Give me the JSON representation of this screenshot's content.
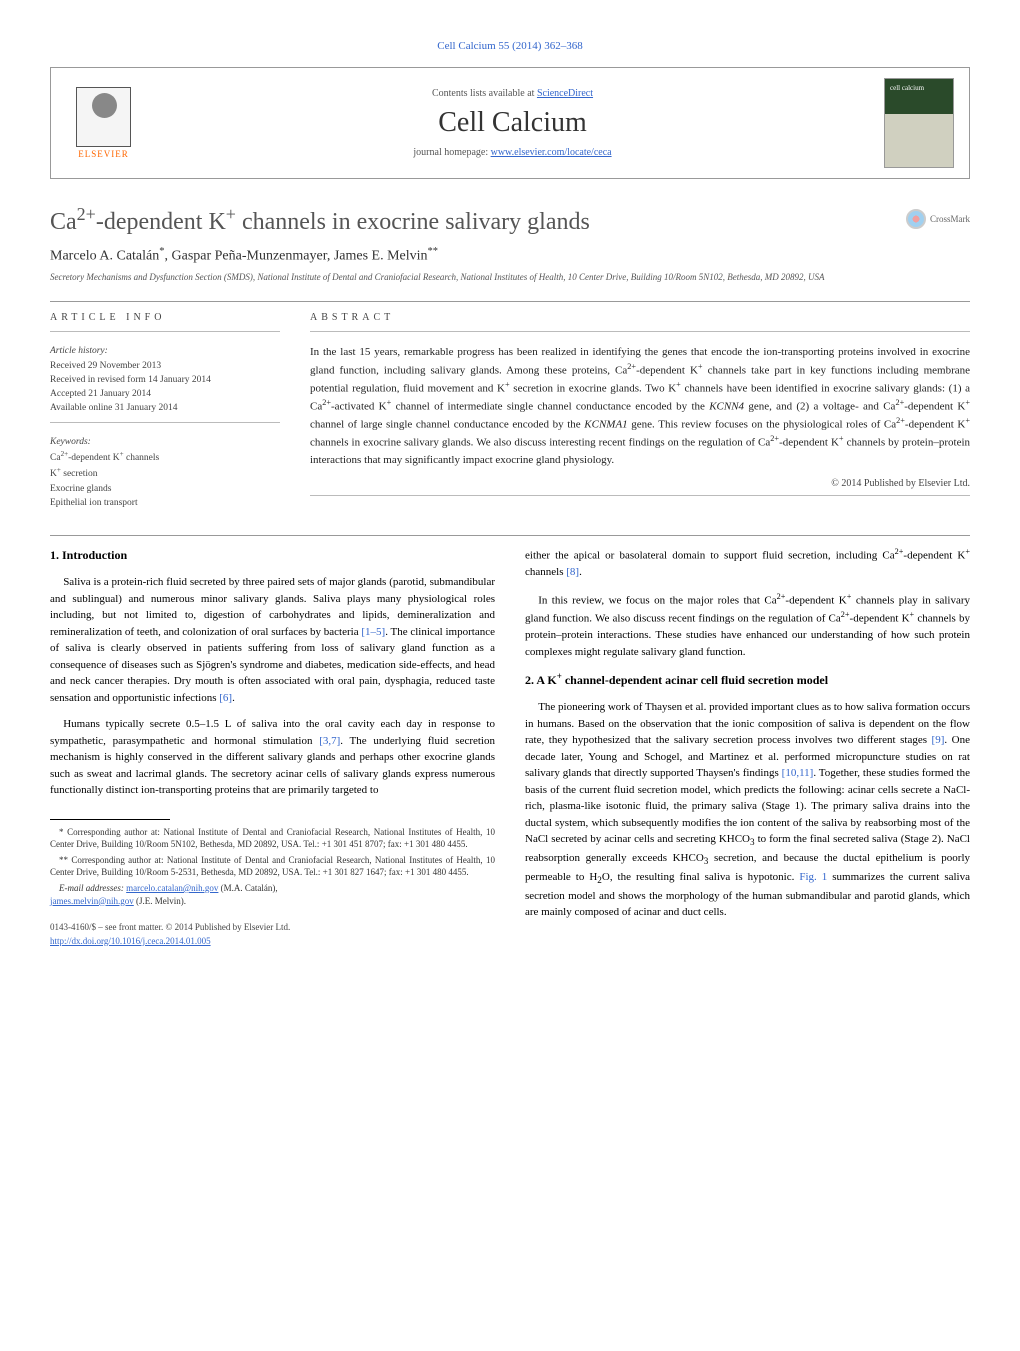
{
  "top_ref": "Cell Calcium 55 (2014) 362–368",
  "header": {
    "contents_prefix": "Contents lists available at ",
    "contents_link": "ScienceDirect",
    "journal_name": "Cell Calcium",
    "homepage_prefix": "journal homepage: ",
    "homepage_link": "www.elsevier.com/locate/ceca",
    "publisher": "ELSEVIER"
  },
  "title_html": "Ca<sup>2+</sup>-dependent K<sup>+</sup> channels in exocrine salivary glands",
  "crossmark": "CrossMark",
  "authors_html": "Marcelo A. Catalán<sup>*</sup>, Gaspar Peña-Munzenmayer, James E. Melvin<sup>**</sup>",
  "affiliation": "Secretory Mechanisms and Dysfunction Section (SMDS), National Institute of Dental and Craniofacial Research, National Institutes of Health, 10 Center Drive, Building 10/Room 5N102, Bethesda, MD 20892, USA",
  "info": {
    "label": "ARTICLE INFO",
    "history_head": "Article history:",
    "history": [
      "Received 29 November 2013",
      "Received in revised form 14 January 2014",
      "Accepted 21 January 2014",
      "Available online 31 January 2014"
    ],
    "keywords_head": "Keywords:",
    "keywords_html": [
      "Ca<sup>2+</sup>-dependent K<sup>+</sup> channels",
      "K<sup>+</sup> secretion",
      "Exocrine glands",
      "Epithelial ion transport"
    ]
  },
  "abstract": {
    "label": "ABSTRACT",
    "text_html": "In the last 15 years, remarkable progress has been realized in identifying the genes that encode the ion-transporting proteins involved in exocrine gland function, including salivary glands. Among these proteins, Ca<sup>2+</sup>-dependent K<sup>+</sup> channels take part in key functions including membrane potential regulation, fluid movement and K<sup>+</sup> secretion in exocrine glands. Two K<sup>+</sup> channels have been identified in exocrine salivary glands: (1) a Ca<sup>2+</sup>-activated K<sup>+</sup> channel of intermediate single channel conductance encoded by the <i>KCNN4</i> gene, and (2) a voltage- and Ca<sup>2+</sup>-dependent K<sup>+</sup> channel of large single channel conductance encoded by the <i>KCNMA1</i> gene. This review focuses on the physiological roles of Ca<sup>2+</sup>-dependent K<sup>+</sup> channels in exocrine salivary glands. We also discuss interesting recent findings on the regulation of Ca<sup>2+</sup>-dependent K<sup>+</sup> channels by protein–protein interactions that may significantly impact exocrine gland physiology.",
    "copyright": "© 2014 Published by Elsevier Ltd."
  },
  "body": {
    "left": {
      "h1": "1. Introduction",
      "p1_html": "Saliva is a protein-rich fluid secreted by three paired sets of major glands (parotid, submandibular and sublingual) and numerous minor salivary glands. Saliva plays many physiological roles including, but not limited to, digestion of carbohydrates and lipids, demineralization and remineralization of teeth, and colonization of oral surfaces by bacteria <span class=\"link\">[1–5]</span>. The clinical importance of saliva is clearly observed in patients suffering from loss of salivary gland function as a consequence of diseases such as Sjögren's syndrome and diabetes, medication side-effects, and head and neck cancer therapies. Dry mouth is often associated with oral pain, dysphagia, reduced taste sensation and opportunistic infections <span class=\"link\">[6]</span>.",
      "p2_html": "Humans typically secrete 0.5–1.5 L of saliva into the oral cavity each day in response to sympathetic, parasympathetic and hormonal stimulation <span class=\"link\">[3,7]</span>. The underlying fluid secretion mechanism is highly conserved in the different salivary glands and perhaps other exocrine glands such as sweat and lacrimal glands. The secretory acinar cells of salivary glands express numerous functionally distinct ion-transporting proteins that are primarily targeted to"
    },
    "right": {
      "p0_html": "either the apical or basolateral domain to support fluid secretion, including Ca<sup>2+</sup>-dependent K<sup>+</sup> channels <span class=\"link\">[8]</span>.",
      "p1_html": "In this review, we focus on the major roles that Ca<sup>2+</sup>-dependent K<sup>+</sup> channels play in salivary gland function. We also discuss recent findings on the regulation of Ca<sup>2+</sup>-dependent K<sup>+</sup> channels by protein–protein interactions. These studies have enhanced our understanding of how such protein complexes might regulate salivary gland function.",
      "h2_html": "2. A K<sup>+</sup> channel-dependent acinar cell fluid secretion model",
      "p2_html": "The pioneering work of Thaysen et al. provided important clues as to how saliva formation occurs in humans. Based on the observation that the ionic composition of saliva is dependent on the flow rate, they hypothesized that the salivary secretion process involves two different stages <span class=\"link\">[9]</span>. One decade later, Young and Schogel, and Martinez et al. performed micropuncture studies on rat salivary glands that directly supported Thaysen's findings <span class=\"link\">[10,11]</span>. Together, these studies formed the basis of the current fluid secretion model, which predicts the following: acinar cells secrete a NaCl-rich, plasma-like isotonic fluid, the primary saliva (Stage 1). The primary saliva drains into the ductal system, which subsequently modifies the ion content of the saliva by reabsorbing most of the NaCl secreted by acinar cells and secreting KHCO<sub>3</sub> to form the final secreted saliva (Stage 2). NaCl reabsorption generally exceeds KHCO<sub>3</sub> secretion, and because the ductal epithelium is poorly permeable to H<sub>2</sub>O, the resulting final saliva is hypotonic. <span class=\"link\">Fig. 1</span> summarizes the current saliva secretion model and shows the morphology of the human submandibular and parotid glands, which are mainly composed of acinar and duct cells."
    }
  },
  "footnotes": {
    "f1": "* Corresponding author at: National Institute of Dental and Craniofacial Research, National Institutes of Health, 10 Center Drive, Building 10/Room 5N102, Bethesda, MD 20892, USA. Tel.: +1 301 451 8707; fax: +1 301 480 4455.",
    "f2": "** Corresponding author at: National Institute of Dental and Craniofacial Research, National Institutes of Health, 10 Center Drive, Building 10/Room 5-2531, Bethesda, MD 20892, USA. Tel.: +1 301 827 1647; fax: +1 301 480 4455.",
    "email_label": "E-mail addresses: ",
    "email1": "marcelo.catalan@nih.gov",
    "email1_who": " (M.A. Catalán),",
    "email2": "james.melvin@nih.gov",
    "email2_who": " (J.E. Melvin)."
  },
  "bottom": {
    "line1": "0143-4160/$ – see front matter. © 2014 Published by Elsevier Ltd.",
    "doi": "http://dx.doi.org/10.1016/j.ceca.2014.01.005"
  },
  "colors": {
    "link": "#3366cc",
    "publisher": "#ff6600",
    "text": "#222222",
    "muted": "#555555",
    "border": "#999999"
  }
}
